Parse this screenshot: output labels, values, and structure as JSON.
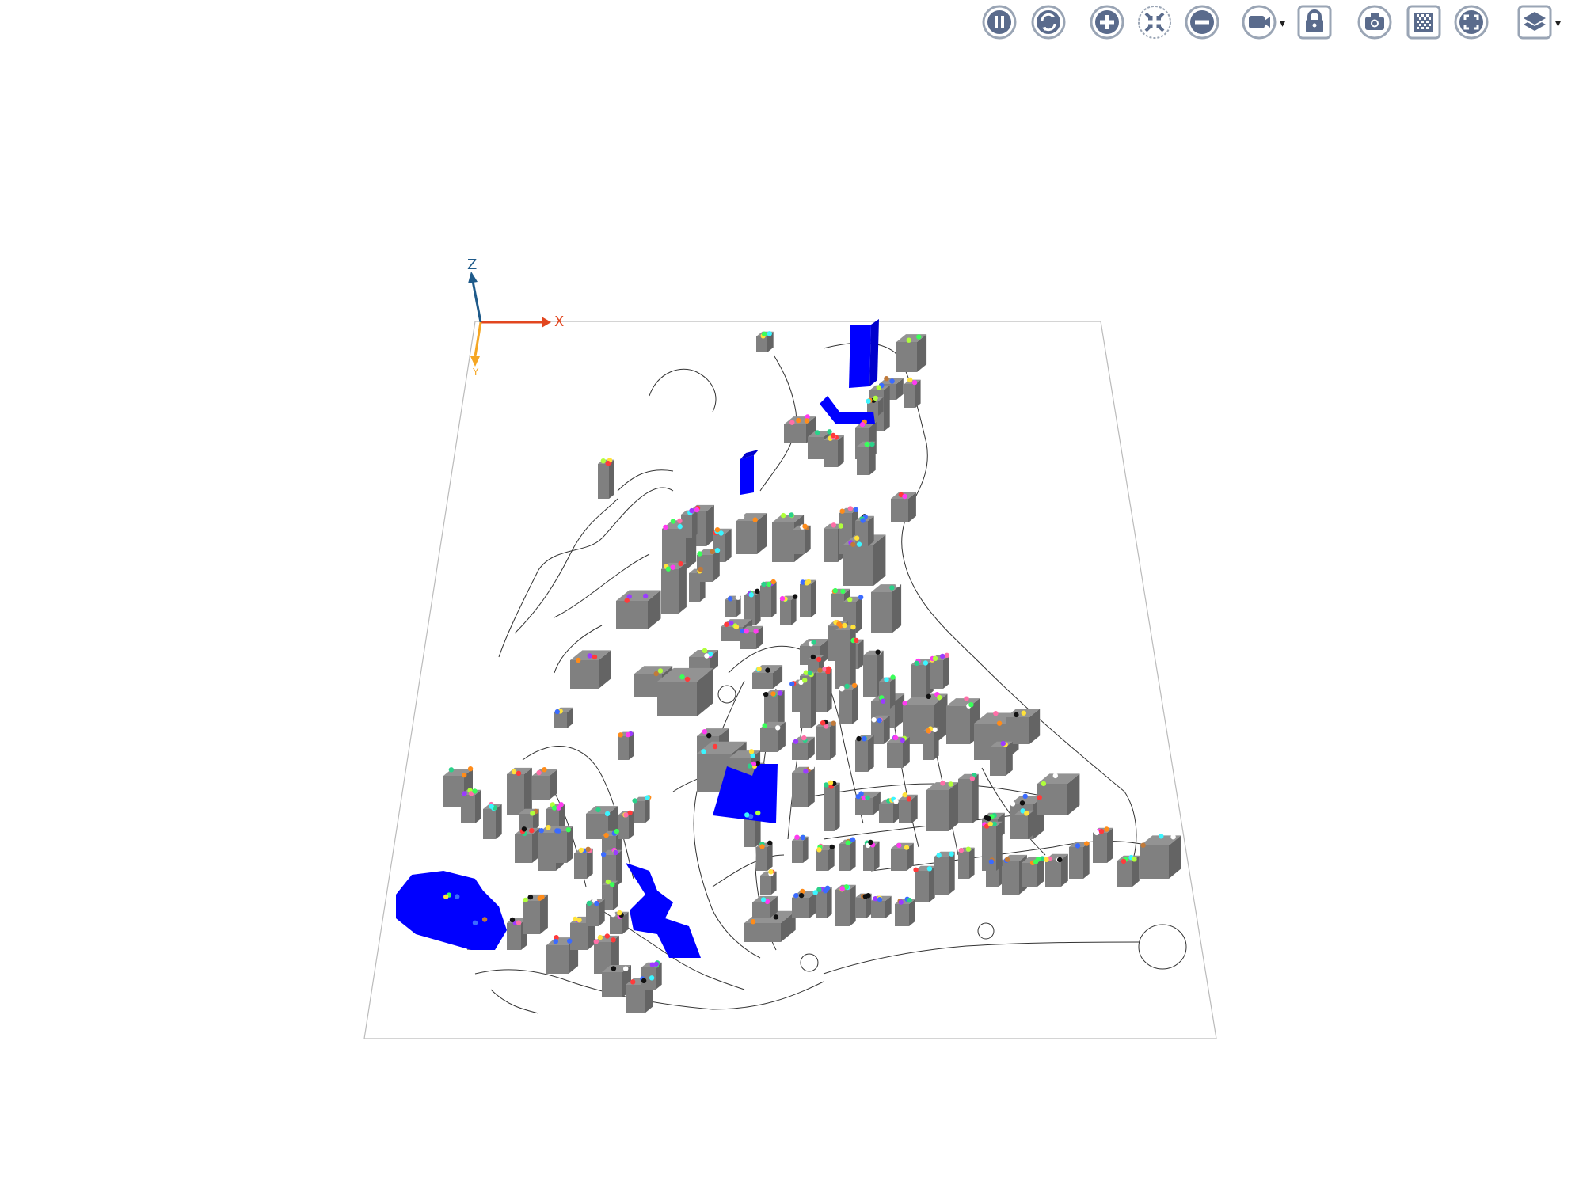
{
  "toolbar": {
    "buttons": [
      {
        "name": "pause-button",
        "icon": "pause-icon"
      },
      {
        "name": "rotate-button",
        "icon": "rotate-icon"
      },
      {
        "name": "zoom-in-button",
        "icon": "plus-icon"
      },
      {
        "name": "fit-view-button",
        "icon": "fit-extent-icon"
      },
      {
        "name": "zoom-out-button",
        "icon": "minus-icon"
      },
      {
        "name": "camera-button",
        "icon": "video-camera-icon"
      },
      {
        "name": "lock-button",
        "icon": "lock-icon"
      },
      {
        "name": "screenshot-button",
        "icon": "camera-icon"
      },
      {
        "name": "transparency-button",
        "icon": "checkerboard-icon"
      },
      {
        "name": "fullscreen-button",
        "icon": "fullscreen-icon"
      },
      {
        "name": "layers-button",
        "icon": "layers-icon"
      }
    ]
  },
  "axes": {
    "x_label": "X",
    "y_label": "Y",
    "z_label": "Z"
  },
  "colors": {
    "icon_fill": "#5a6b8c",
    "icon_ring": "#9aa5b5",
    "building_gray": "#808080",
    "building_highlight": "#0000ff",
    "x_axis": "#e2461f",
    "y_axis": "#f5a623",
    "z_axis": "#1e5a8a",
    "road_line": "#333333",
    "ground_outline": "#bbbbbb"
  }
}
